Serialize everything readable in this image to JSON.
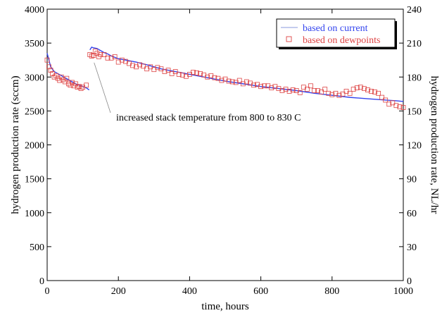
{
  "chart_data": {
    "type": "line",
    "title": "",
    "xlabel": "time, hours",
    "ylabel": "hydrogen production rate (sccm)",
    "y2label": "hydrogen production rate, NL/hr",
    "xlim": [
      0,
      1000
    ],
    "ylim": [
      0,
      4000
    ],
    "y2lim": [
      0,
      240
    ],
    "x_ticks": [
      "0",
      "200",
      "400",
      "600",
      "800",
      "1000"
    ],
    "y_ticks": [
      "0",
      "500",
      "1000",
      "1500",
      "2000",
      "2500",
      "3000",
      "3500",
      "4000"
    ],
    "y2_ticks": [
      "0",
      "30",
      "60",
      "90",
      "120",
      "150",
      "180",
      "210",
      "240"
    ],
    "grid": false,
    "legend_position": "top-right",
    "series": [
      {
        "name": "based on current",
        "style": "line",
        "color": "#3344ee",
        "x": [
          0,
          5,
          10,
          20,
          30,
          40,
          50,
          60,
          70,
          80,
          90,
          100,
          110,
          118,
          120,
          125,
          130,
          140,
          150,
          160,
          170,
          180,
          200,
          220,
          250,
          280,
          300,
          320,
          350,
          380,
          400,
          450,
          500,
          550,
          600,
          650,
          700,
          750,
          800,
          850,
          900,
          950,
          980,
          1000
        ],
        "y": [
          3350,
          3250,
          3150,
          3080,
          3050,
          3020,
          2990,
          2960,
          2930,
          2900,
          2880,
          2860,
          2840,
          2810,
          3400,
          3440,
          3430,
          3420,
          3390,
          3360,
          3340,
          3310,
          3270,
          3250,
          3220,
          3180,
          3150,
          3120,
          3090,
          3060,
          3040,
          2990,
          2940,
          2900,
          2860,
          2830,
          2800,
          2760,
          2730,
          2700,
          2680,
          2660,
          2650,
          2640
        ]
      },
      {
        "name": "based on dewpoints",
        "style": "markers",
        "marker": "square",
        "color": "#dd4444",
        "x": [
          0,
          5,
          10,
          15,
          20,
          25,
          30,
          35,
          40,
          45,
          50,
          55,
          60,
          65,
          70,
          75,
          80,
          85,
          90,
          95,
          100,
          110,
          120,
          125,
          130,
          135,
          140,
          145,
          150,
          160,
          170,
          180,
          190,
          200,
          210,
          220,
          230,
          240,
          250,
          260,
          270,
          280,
          290,
          300,
          310,
          320,
          330,
          340,
          350,
          360,
          370,
          380,
          390,
          400,
          410,
          420,
          430,
          440,
          450,
          460,
          470,
          480,
          490,
          500,
          510,
          520,
          530,
          540,
          550,
          560,
          570,
          580,
          590,
          600,
          610,
          620,
          630,
          640,
          650,
          660,
          670,
          680,
          690,
          700,
          710,
          720,
          730,
          740,
          750,
          760,
          770,
          780,
          790,
          800,
          810,
          820,
          830,
          840,
          850,
          860,
          870,
          880,
          890,
          900,
          910,
          920,
          930,
          940,
          950,
          960,
          970,
          980,
          990,
          1000
        ],
        "y": [
          3250,
          3150,
          3100,
          3050,
          3000,
          3020,
          2980,
          2950,
          3000,
          2960,
          2930,
          2980,
          2900,
          2880,
          2920,
          2870,
          2900,
          2850,
          2860,
          2830,
          2850,
          2880,
          3330,
          3310,
          3320,
          3380,
          3350,
          3300,
          3330,
          3330,
          3280,
          3280,
          3300,
          3220,
          3250,
          3230,
          3200,
          3170,
          3150,
          3180,
          3160,
          3120,
          3150,
          3110,
          3140,
          3120,
          3080,
          3100,
          3050,
          3080,
          3040,
          3030,
          3010,
          3040,
          3070,
          3060,
          3050,
          3030,
          3000,
          3020,
          2990,
          2980,
          2950,
          2970,
          2940,
          2930,
          2920,
          2950,
          2900,
          2930,
          2910,
          2880,
          2890,
          2860,
          2870,
          2870,
          2840,
          2860,
          2830,
          2800,
          2820,
          2790,
          2810,
          2800,
          2770,
          2850,
          2820,
          2870,
          2800,
          2800,
          2780,
          2820,
          2760,
          2740,
          2760,
          2730,
          2750,
          2790,
          2760,
          2820,
          2840,
          2850,
          2830,
          2810,
          2790,
          2780,
          2760,
          2700,
          2660,
          2600,
          2620,
          2580,
          2560,
          2550
        ]
      }
    ],
    "annotations": [
      {
        "text": "increased stack temperature from 800 to 830 C",
        "x": 120,
        "y": 3420
      }
    ]
  }
}
